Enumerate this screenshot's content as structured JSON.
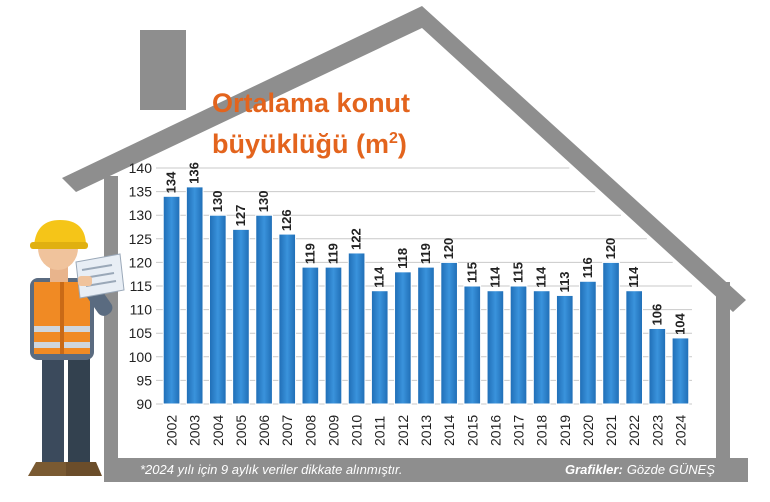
{
  "chart_data": {
    "type": "bar",
    "title_line1": "Ortalama konut",
    "title_line2_text": "büyüklüğü (m",
    "title_line2_sup": "2",
    "title_line2_end": ")",
    "categories": [
      "2002",
      "2003",
      "2004",
      "2005",
      "2006",
      "2007",
      "2008",
      "2009",
      "2010",
      "2011",
      "2012",
      "2013",
      "2014",
      "2015",
      "2016",
      "2017",
      "2018",
      "2019",
      "2020",
      "2021",
      "2022",
      "2023",
      "2024"
    ],
    "values": [
      134,
      136,
      130,
      127,
      130,
      126,
      119,
      119,
      122,
      114,
      118,
      119,
      120,
      115,
      114,
      115,
      114,
      113,
      116,
      120,
      114,
      106,
      104
    ],
    "ylim": [
      90,
      140
    ],
    "yticks": [
      90,
      95,
      100,
      105,
      110,
      115,
      120,
      125,
      130,
      135,
      140
    ],
    "grid": true,
    "bar_color": "#2a7fc9",
    "accent_color": "#e3641d"
  },
  "footer": {
    "note": "*2024 yılı için 9 aylık veriler dikkate alınmıştır.",
    "credit_label": "Grafikler:",
    "credit_name": "Gözde GÜNEŞ"
  }
}
